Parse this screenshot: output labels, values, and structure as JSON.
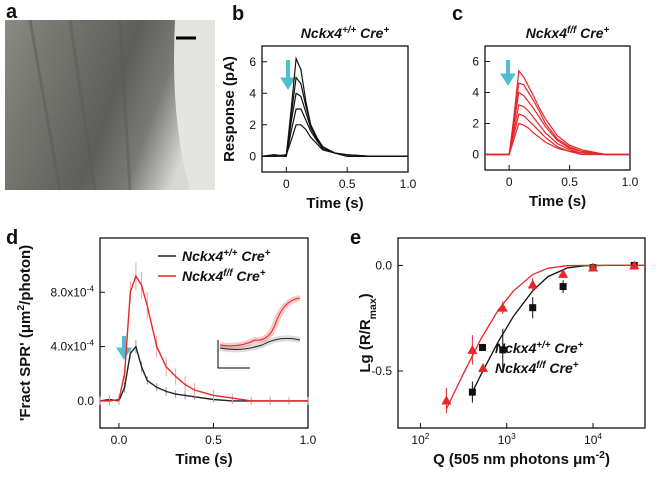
{
  "chart_data": [
    {
      "type": "image",
      "label": "a"
    },
    {
      "type": "line",
      "label": "b",
      "title": [
        "Nckx4",
        "+/+",
        " Cre",
        "+"
      ],
      "title_color": "#111111",
      "xlabel": "Time (s)",
      "ylabel": "Response (pA)",
      "x": [
        -0.2,
        -0.1,
        0,
        0.04,
        0.08,
        0.12,
        0.16,
        0.2,
        0.25,
        0.3,
        0.4,
        0.5,
        0.7,
        1.0
      ],
      "xlim": [
        -0.2,
        1.0
      ],
      "xticks": [
        0,
        0.5,
        {
          "value": 1,
          "label": "1.0"
        }
      ],
      "ylim": [
        -1,
        7
      ],
      "yticks": [
        0,
        2,
        4,
        6
      ],
      "series": [
        {
          "color": "#111111",
          "values": [
            0,
            0.1,
            0,
            3.0,
            6.2,
            5.5,
            3.5,
            2.0,
            1.0,
            0.5,
            0.2,
            0,
            0,
            0
          ]
        },
        {
          "color": "#111111",
          "values": [
            0,
            0,
            0.1,
            2.6,
            5.0,
            4.6,
            3.2,
            2.0,
            1.2,
            0.6,
            0.2,
            0.1,
            0,
            0
          ]
        },
        {
          "color": "#111111",
          "values": [
            0,
            0.1,
            0,
            2.2,
            4.0,
            3.8,
            2.8,
            1.8,
            1.1,
            0.6,
            0.2,
            0,
            0,
            0
          ]
        },
        {
          "color": "#111111",
          "values": [
            0,
            0,
            0,
            1.6,
            3.0,
            3.0,
            2.3,
            1.6,
            1.0,
            0.5,
            0.2,
            0.1,
            0,
            0
          ]
        },
        {
          "color": "#111111",
          "values": [
            0,
            0,
            0.1,
            1.0,
            2.0,
            2.0,
            1.7,
            1.2,
            0.8,
            0.4,
            0.2,
            0,
            0,
            0
          ]
        }
      ]
    },
    {
      "type": "line",
      "label": "c",
      "title": [
        "Nckx4",
        "f/f",
        " Cre",
        "+"
      ],
      "title_color": "#e8262a",
      "xlabel": "Time (s)",
      "x": [
        -0.2,
        -0.1,
        0,
        0.04,
        0.08,
        0.12,
        0.16,
        0.2,
        0.25,
        0.3,
        0.4,
        0.5,
        0.6,
        0.8,
        1.0
      ],
      "xlim": [
        -0.2,
        1.0
      ],
      "xticks": [
        0,
        0.5,
        {
          "value": 1,
          "label": "1.0"
        }
      ],
      "ylim": [
        -1,
        7
      ],
      "yticks": [
        0,
        2,
        4,
        6
      ],
      "series": [
        {
          "color": "#e8262a",
          "values": [
            0,
            0,
            0,
            2.5,
            5.4,
            5.0,
            4.4,
            3.8,
            3.0,
            2.3,
            1.2,
            0.6,
            0.3,
            0,
            0
          ]
        },
        {
          "color": "#e8262a",
          "values": [
            0,
            0,
            0,
            2.2,
            4.6,
            4.5,
            4.0,
            3.5,
            2.8,
            2.0,
            1.0,
            0.5,
            0.2,
            0,
            0
          ]
        },
        {
          "color": "#e8262a",
          "values": [
            0,
            0,
            0,
            2.0,
            4.0,
            3.8,
            3.4,
            3.0,
            2.4,
            1.8,
            0.9,
            0.4,
            0.2,
            0,
            0
          ]
        },
        {
          "color": "#e8262a",
          "values": [
            0,
            0,
            0,
            1.6,
            3.2,
            3.1,
            2.8,
            2.4,
            1.9,
            1.4,
            0.7,
            0.3,
            0.1,
            0,
            0
          ]
        },
        {
          "color": "#e8262a",
          "values": [
            0,
            0,
            0,
            1.3,
            2.6,
            2.5,
            2.2,
            1.9,
            1.5,
            1.1,
            0.5,
            0.2,
            0.1,
            0,
            0
          ]
        },
        {
          "color": "#e8262a",
          "values": [
            0,
            0,
            0,
            1.0,
            2.0,
            1.9,
            1.7,
            1.4,
            1.1,
            0.8,
            0.4,
            0.2,
            0,
            0,
            0
          ]
        }
      ]
    },
    {
      "type": "errorline",
      "label": "d",
      "xlabel": "Time (s)",
      "ylabel": [
        "'Fract SPR' (μm",
        "2",
        "/photon)"
      ],
      "x": [
        -0.1,
        -0.05,
        0,
        0.03,
        0.06,
        0.09,
        0.12,
        0.15,
        0.2,
        0.25,
        0.3,
        0.35,
        0.4,
        0.5,
        0.6,
        0.7,
        0.8,
        0.9,
        1.0
      ],
      "xlim": [
        -0.1,
        1.0
      ],
      "xticks": [
        {
          "value": 0,
          "label": "0.0"
        },
        0.5,
        {
          "value": 1,
          "label": "1.0"
        }
      ],
      "ylim": [
        -0.0002,
        0.0012
      ],
      "yticks": [
        {
          "value": 0,
          "label": "0.0"
        },
        {
          "value": 0.0004,
          "label": [
            "4.0x10",
            "-4"
          ]
        },
        {
          "value": 0.0008,
          "label": [
            "8.0x10",
            "-4"
          ]
        }
      ],
      "legend": "top-right",
      "series": [
        {
          "name": [
            "Nckx4",
            "+/+",
            " Cre",
            "+"
          ],
          "color": "#222222",
          "error_color": "#999999",
          "values": [
            0,
            1e-05,
            0,
            0.0001,
            0.00035,
            0.0004,
            0.00025,
            0.00015,
            0.0001,
            7e-05,
            5e-05,
            4e-05,
            3e-05,
            1e-05,
            0,
            0,
            0,
            0,
            0
          ],
          "errors": [
            3e-05,
            3e-05,
            3e-05,
            4e-05,
            4e-05,
            5e-05,
            4e-05,
            3e-05,
            3e-05,
            3e-05,
            3e-05,
            3e-05,
            2e-05,
            2e-05,
            2e-05,
            2e-05,
            2e-05,
            2e-05,
            2e-05
          ]
        },
        {
          "name": [
            "Nckx4",
            "f/f",
            " Cre",
            "+"
          ],
          "color": "#e8262a",
          "error_color": "#f0a0a0",
          "values": [
            0,
            0,
            1e-05,
            0.0002,
            0.0008,
            0.00092,
            0.00085,
            0.0007,
            0.0004,
            0.00025,
            0.00018,
            0.00012,
            8e-05,
            4e-05,
            2e-05,
            0,
            0,
            0,
            0
          ],
          "errors": [
            3e-05,
            3e-05,
            3e-05,
            5e-05,
            8e-05,
            0.0001,
            0.0001,
            0.0001,
            8e-05,
            7e-05,
            6e-05,
            6e-05,
            5e-05,
            4e-05,
            3e-05,
            3e-05,
            3e-05,
            3e-05,
            3e-05
          ]
        }
      ]
    },
    {
      "type": "scatter",
      "label": "e",
      "log_x": true,
      "xlabel": [
        "Q (505 nm photons μm",
        "-2",
        ")"
      ],
      "ylabel": [
        "Lg (R/R",
        "max",
        ")"
      ],
      "xlim": [
        55,
        40000
      ],
      "xticks": [
        {
          "value": 100,
          "label": [
            "10",
            "2"
          ]
        },
        {
          "value": 1000,
          "label": [
            "10",
            "3"
          ]
        },
        {
          "value": 10000,
          "label": [
            "10",
            "4"
          ]
        }
      ],
      "ylim": [
        -0.77,
        0.13
      ],
      "yticks": [
        {
          "value": -0.5,
          "label": "-0.5"
        },
        {
          "value": 0,
          "label": "0.0"
        }
      ],
      "legend": "bottom-right",
      "series": [
        {
          "name": [
            "Nckx4",
            "+/+",
            " Cre",
            "+"
          ],
          "color": "#111111",
          "marker": "square",
          "x": [
            400,
            900,
            2000,
            4500,
            10000,
            30000
          ],
          "values": [
            -0.6,
            -0.4,
            -0.2,
            -0.1,
            -0.01,
            0
          ],
          "errors": [
            0.05,
            0.1,
            0.05,
            0.03,
            0.01,
            0.01
          ],
          "fit": {
            "x": [
              400,
              500,
              800,
              1200,
              2000,
              3000,
              5000,
              8000,
              15000,
              40000
            ],
            "values": [
              -0.6,
              -0.52,
              -0.36,
              -0.24,
              -0.12,
              -0.053,
              -0.012,
              -0.001,
              0,
              0
            ]
          }
        },
        {
          "name": [
            "Nckx4",
            "f/f",
            " Cre",
            "+"
          ],
          "color": "#e8262a",
          "marker": "triangle",
          "x": [
            200,
            400,
            900,
            2000,
            4500,
            10000,
            30000
          ],
          "values": [
            -0.64,
            -0.4,
            -0.2,
            -0.09,
            -0.04,
            -0.01,
            0
          ],
          "errors": [
            0.06,
            0.07,
            0.03,
            0.03,
            0.02,
            0.01,
            0.01
          ],
          "fit": {
            "x": [
              200,
              300,
              500,
              800,
              1200,
              2000,
              3000,
              5000,
              8000,
              15000,
              40000
            ],
            "values": [
              -0.68,
              -0.53,
              -0.35,
              -0.21,
              -0.12,
              -0.043,
              -0.013,
              -0.001,
              0,
              0,
              0
            ]
          }
        }
      ]
    }
  ]
}
